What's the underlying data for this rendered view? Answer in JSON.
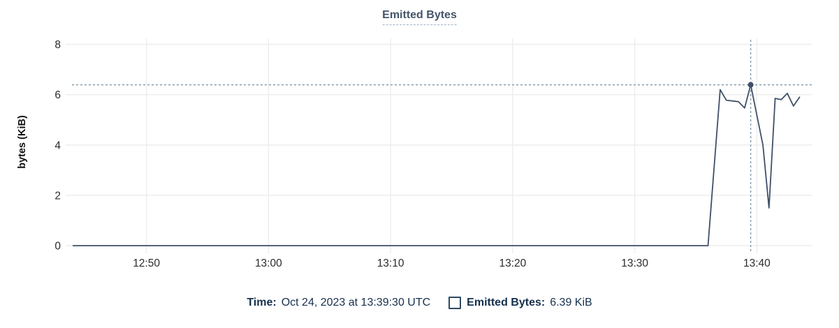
{
  "title": {
    "text": "Emitted Bytes"
  },
  "footer": {
    "time_label": "Time:",
    "time_value": "Oct 24, 2023 at 13:39:30 UTC",
    "series_label": "Emitted Bytes:",
    "series_value": "6.39 KiB",
    "legend_swatch": "checkbox-unchecked-square"
  },
  "colors": {
    "line": "#3f5068",
    "title": "#44546a",
    "navy_text": "#16304d",
    "checkbox_border": "#2e4a66",
    "crosshair": "#8095a5",
    "gridline": "#ededed",
    "tick_text": "#2b2b2b",
    "axis_title_text": "#111111"
  },
  "chart_data": {
    "type": "line",
    "title": "Emitted Bytes",
    "xlabel": "",
    "ylabel": "bytes (KiB)",
    "ylim": [
      0,
      8
    ],
    "y_ticks": [
      0,
      2,
      4,
      6,
      8
    ],
    "x_domain": [
      "12:43:30",
      "13:44:30"
    ],
    "x_ticks": [
      {
        "label": "12:50",
        "time": "12:50:00"
      },
      {
        "label": "13:00",
        "time": "13:00:00"
      },
      {
        "label": "13:10",
        "time": "13:10:00"
      },
      {
        "label": "13:20",
        "time": "13:20:00"
      },
      {
        "label": "13:30",
        "time": "13:30:00"
      },
      {
        "label": "13:40",
        "time": "13:40:00"
      }
    ],
    "grid": true,
    "legend_position": "bottom",
    "series": [
      {
        "name": "Emitted Bytes",
        "unit": "KiB",
        "points": [
          [
            "12:44:00",
            0
          ],
          [
            "13:36:00",
            0
          ],
          [
            "13:37:00",
            6.2
          ],
          [
            "13:37:30",
            5.78
          ],
          [
            "13:38:30",
            5.72
          ],
          [
            "13:39:00",
            5.47
          ],
          [
            "13:39:30",
            6.39
          ],
          [
            "13:40:30",
            4.0
          ],
          [
            "13:41:00",
            1.5
          ],
          [
            "13:41:30",
            5.85
          ],
          [
            "13:42:00",
            5.8
          ],
          [
            "13:42:30",
            6.05
          ],
          [
            "13:43:00",
            5.55
          ],
          [
            "13:43:30",
            5.9
          ]
        ]
      }
    ],
    "highlight": {
      "time": "13:39:30",
      "value": 6.39,
      "date_text": "Oct 24, 2023 at 13:39:30 UTC",
      "value_text": "6.39 KiB",
      "crosshair": true
    }
  }
}
